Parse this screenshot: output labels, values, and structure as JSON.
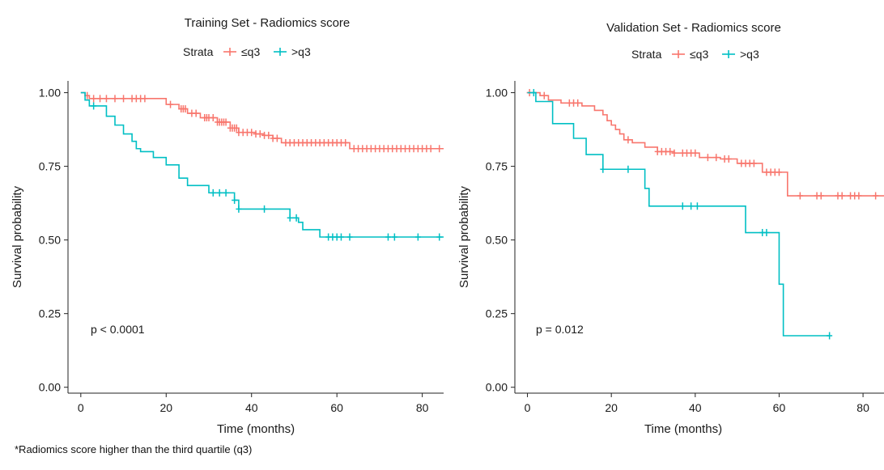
{
  "chart_data": [
    {
      "type": "line",
      "subtype": "kaplan-meier",
      "title": "Training Set - Radiomics score",
      "xlabel": "Time (months)",
      "ylabel": "Survival probability",
      "xlim": [
        -3,
        85
      ],
      "ylim": [
        -0.02,
        1.04
      ],
      "xticks": [
        0,
        20,
        40,
        60,
        80
      ],
      "xtick_labels": [
        "0",
        "20",
        "40",
        "60",
        "80"
      ],
      "yticks": [
        0,
        0.25,
        0.5,
        0.75,
        1
      ],
      "ytick_labels": [
        "0.00",
        "0.25",
        "0.50",
        "0.75",
        "1.00"
      ],
      "grid": false,
      "legend": {
        "title": "Strata",
        "placement": "top"
      },
      "annotation": "p < 0.0001",
      "series": [
        {
          "name": "≤q3",
          "color": "#F8766D",
          "x": [
            0,
            1,
            2,
            20,
            23,
            25,
            28,
            32,
            35,
            37,
            41,
            43,
            45,
            47,
            63,
            85
          ],
          "y": [
            1.0,
            0.99,
            0.98,
            0.96,
            0.945,
            0.93,
            0.915,
            0.9,
            0.88,
            0.865,
            0.86,
            0.855,
            0.845,
            0.83,
            0.81,
            0.81
          ],
          "censor_x": [
            1.5,
            3,
            4.5,
            6,
            8,
            10,
            12,
            13,
            14,
            15,
            21,
            23.5,
            24,
            24.5,
            26,
            27,
            29,
            29.5,
            30,
            31,
            32,
            32.5,
            33,
            33.5,
            34,
            35,
            35.5,
            36,
            36.5,
            37,
            38,
            39,
            40,
            41,
            42,
            43,
            44,
            45,
            46,
            48,
            49,
            50,
            51,
            52,
            53,
            54,
            55,
            56,
            57,
            58,
            59,
            60,
            61,
            62,
            64,
            65,
            66,
            67,
            68,
            69,
            70,
            71,
            72,
            73,
            74,
            75,
            76,
            77,
            78,
            79,
            80,
            81,
            82,
            84
          ]
        },
        {
          "name": ">q3",
          "color": "#00BFC4",
          "x": [
            0,
            1,
            2,
            3,
            6,
            8,
            10,
            12,
            13,
            14,
            17,
            20,
            23,
            25,
            30,
            36,
            37,
            49,
            51,
            52,
            56,
            85
          ],
          "y": [
            1.0,
            0.975,
            0.955,
            0.955,
            0.92,
            0.89,
            0.86,
            0.835,
            0.81,
            0.8,
            0.78,
            0.755,
            0.71,
            0.685,
            0.66,
            0.635,
            0.605,
            0.575,
            0.56,
            0.535,
            0.51,
            0.51
          ],
          "censor_x": [
            3,
            31,
            32.5,
            34,
            36,
            37,
            43,
            49,
            50.5,
            58,
            59,
            60,
            61,
            63,
            72,
            73.5,
            79,
            84
          ]
        }
      ]
    },
    {
      "type": "line",
      "subtype": "kaplan-meier",
      "title": "Validation Set - Radiomics score",
      "xlabel": "Time (months)",
      "ylabel": "Survival probability",
      "xlim": [
        -3,
        85
      ],
      "ylim": [
        -0.02,
        1.04
      ],
      "xticks": [
        0,
        20,
        40,
        60,
        80
      ],
      "xtick_labels": [
        "0",
        "20",
        "40",
        "60",
        "80"
      ],
      "yticks": [
        0,
        0.25,
        0.5,
        0.75,
        1
      ],
      "ytick_labels": [
        "0.00",
        "0.25",
        "0.50",
        "0.75",
        "1.00"
      ],
      "grid": false,
      "legend": {
        "title": "Strata",
        "placement": "top"
      },
      "annotation": "p = 0.012",
      "series": [
        {
          "name": "≤q3",
          "color": "#F8766D",
          "x": [
            0,
            3,
            5,
            8,
            13,
            16,
            18,
            19,
            20,
            21,
            22,
            23,
            25,
            28,
            31,
            35,
            41,
            46,
            50,
            56,
            62,
            85
          ],
          "y": [
            1.0,
            0.99,
            0.975,
            0.965,
            0.955,
            0.94,
            0.925,
            0.905,
            0.89,
            0.875,
            0.86,
            0.84,
            0.83,
            0.815,
            0.8,
            0.795,
            0.78,
            0.775,
            0.76,
            0.73,
            0.65,
            0.65
          ],
          "censor_x": [
            0.5,
            4,
            10,
            11,
            12,
            24,
            31,
            32,
            33,
            34,
            35,
            37,
            38,
            39,
            40,
            43,
            45,
            47,
            48,
            51,
            52,
            53,
            54,
            57,
            58,
            59,
            60,
            65,
            69,
            70,
            74,
            75,
            77,
            78,
            79,
            83
          ]
        },
        {
          "name": ">q3",
          "color": "#00BFC4",
          "x": [
            0,
            2,
            6,
            11,
            14,
            18,
            28,
            29,
            52,
            60,
            61,
            62,
            72
          ],
          "y": [
            1.0,
            0.97,
            0.895,
            0.845,
            0.79,
            0.74,
            0.675,
            0.615,
            0.525,
            0.35,
            0.175,
            0.175,
            0.175
          ],
          "censor_x": [
            1.5,
            18,
            24,
            37,
            39,
            40.5,
            56,
            57,
            72
          ]
        }
      ]
    }
  ],
  "footnote": "*Radiomics score higher than the third quartile (q3)"
}
